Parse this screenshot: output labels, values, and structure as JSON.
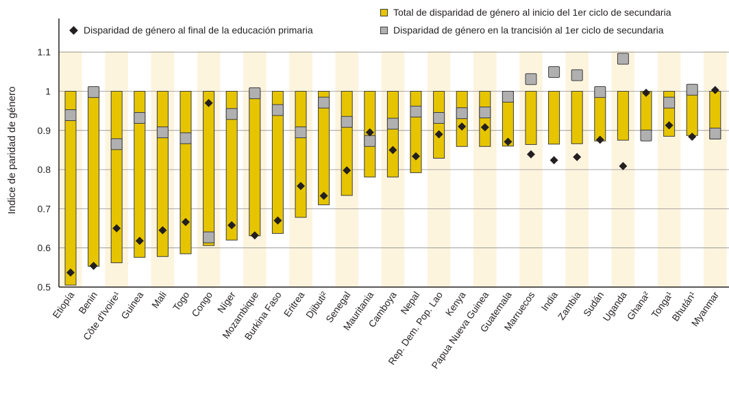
{
  "chart_data": {
    "type": "bar",
    "ylabel": "Indice de paridad de género",
    "ylim": [
      0.5,
      1.1
    ],
    "yticks": [
      "0.5",
      "0.6",
      "0.7",
      "0.8",
      "0.9",
      "1",
      "1.1"
    ],
    "grid": true,
    "legend_position": "top",
    "categories": [
      "Etiopía",
      "Benin",
      "Côte d'Ivoire¹",
      "Guinea",
      "Mali",
      "Togo",
      "Congo",
      "Níger",
      "Mozambique",
      "Burkina Faso",
      "Eritrea",
      "Djibuti²",
      "Senegal",
      "Mauritania",
      "Camboya",
      "Nepal",
      "Rep. Dem. Pop. Lao",
      "Kenya",
      "Papua Nueva Guinea",
      "Guatemala",
      "Marruecos",
      "India",
      "Zambia",
      "Sudán",
      "Uganda",
      "Ghana²",
      "Tonga¹",
      "Bhután¹",
      "Myanmar"
    ],
    "series": [
      {
        "name": "Total de disparidad de género al inicio del 1er ciclo de secundaria",
        "kind": "range-bar",
        "low": [
          0.505,
          0.553,
          0.562,
          0.576,
          0.578,
          0.585,
          0.606,
          0.62,
          0.631,
          0.637,
          0.678,
          0.71,
          0.734,
          0.781,
          0.781,
          0.792,
          0.829,
          0.859,
          0.859,
          0.86,
          0.864,
          0.865,
          0.866,
          0.873,
          0.875,
          0.877,
          0.885,
          0.887,
          0.878
        ],
        "high": [
          1,
          1,
          1,
          1,
          1,
          1,
          1,
          1,
          1,
          1,
          1,
          1,
          1,
          1,
          1,
          1,
          1,
          1,
          1,
          1,
          1,
          1,
          1,
          1,
          1,
          1,
          1,
          1,
          1
        ]
      },
      {
        "name": "Disparidad de género al final de la educación primaria",
        "kind": "diamond",
        "values": [
          0.537,
          0.554,
          0.65,
          0.618,
          0.645,
          0.666,
          0.97,
          0.658,
          0.632,
          0.67,
          0.758,
          0.733,
          0.798,
          0.895,
          0.85,
          0.834,
          0.89,
          0.91,
          0.908,
          0.871,
          0.839,
          0.824,
          0.832,
          0.876,
          0.809,
          0.996,
          0.913,
          0.884,
          1.003
        ]
      },
      {
        "name": "Disparidad de género en la trancisión al 1er ciclo de secundaria",
        "kind": "square",
        "values": [
          0.939,
          0.998,
          0.865,
          0.932,
          0.895,
          0.88,
          0.627,
          0.942,
          0.995,
          0.952,
          0.895,
          0.971,
          0.922,
          0.873,
          0.917,
          0.948,
          0.932,
          0.944,
          0.946,
          0.986,
          1.031,
          1.049,
          1.041,
          0.998,
          1.083,
          0.887,
          0.971,
          1.004,
          0.892
        ]
      }
    ]
  },
  "colors": {
    "bar": "#e6c500",
    "square": "#b0b0b0",
    "diamond": "#231f20",
    "band": "#fdf4de",
    "grid": "#8c8c8c"
  }
}
